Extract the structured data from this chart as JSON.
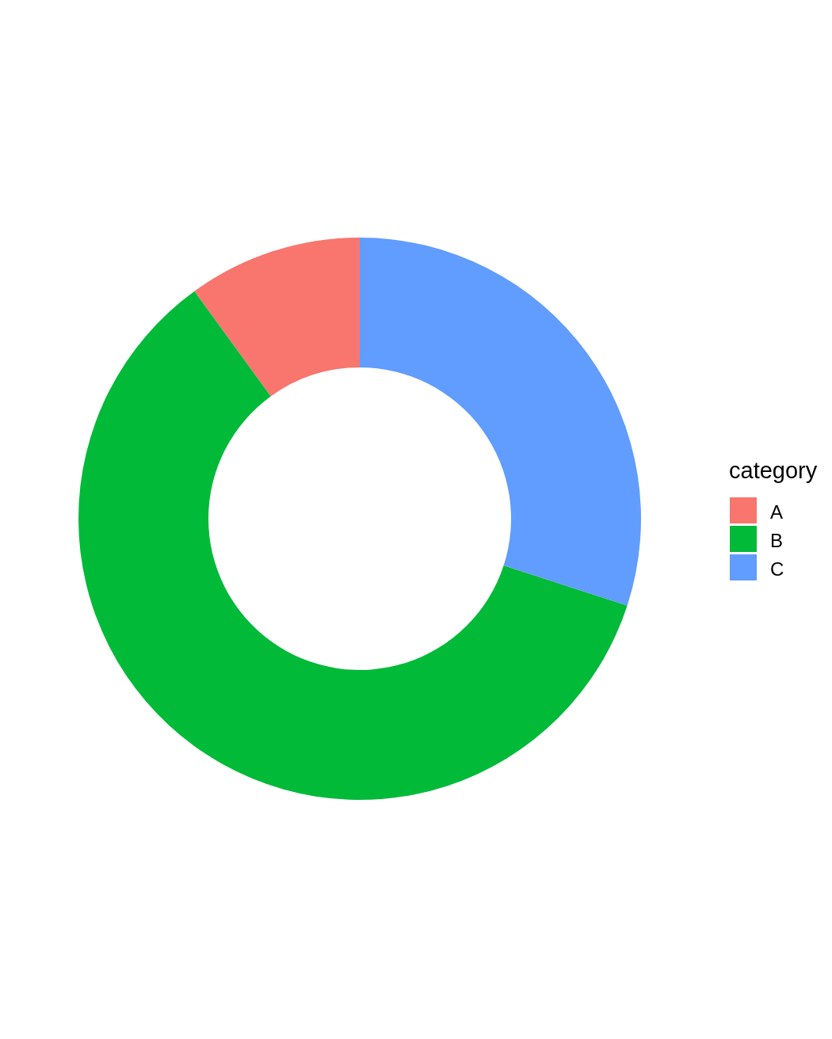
{
  "chart_data": {
    "type": "donut",
    "legend_title": "category",
    "categories": [
      "A",
      "B",
      "C"
    ],
    "values": [
      10,
      60,
      30
    ],
    "colors": [
      "#f8766d",
      "#00ba38",
      "#619cff"
    ],
    "legend": "right"
  }
}
